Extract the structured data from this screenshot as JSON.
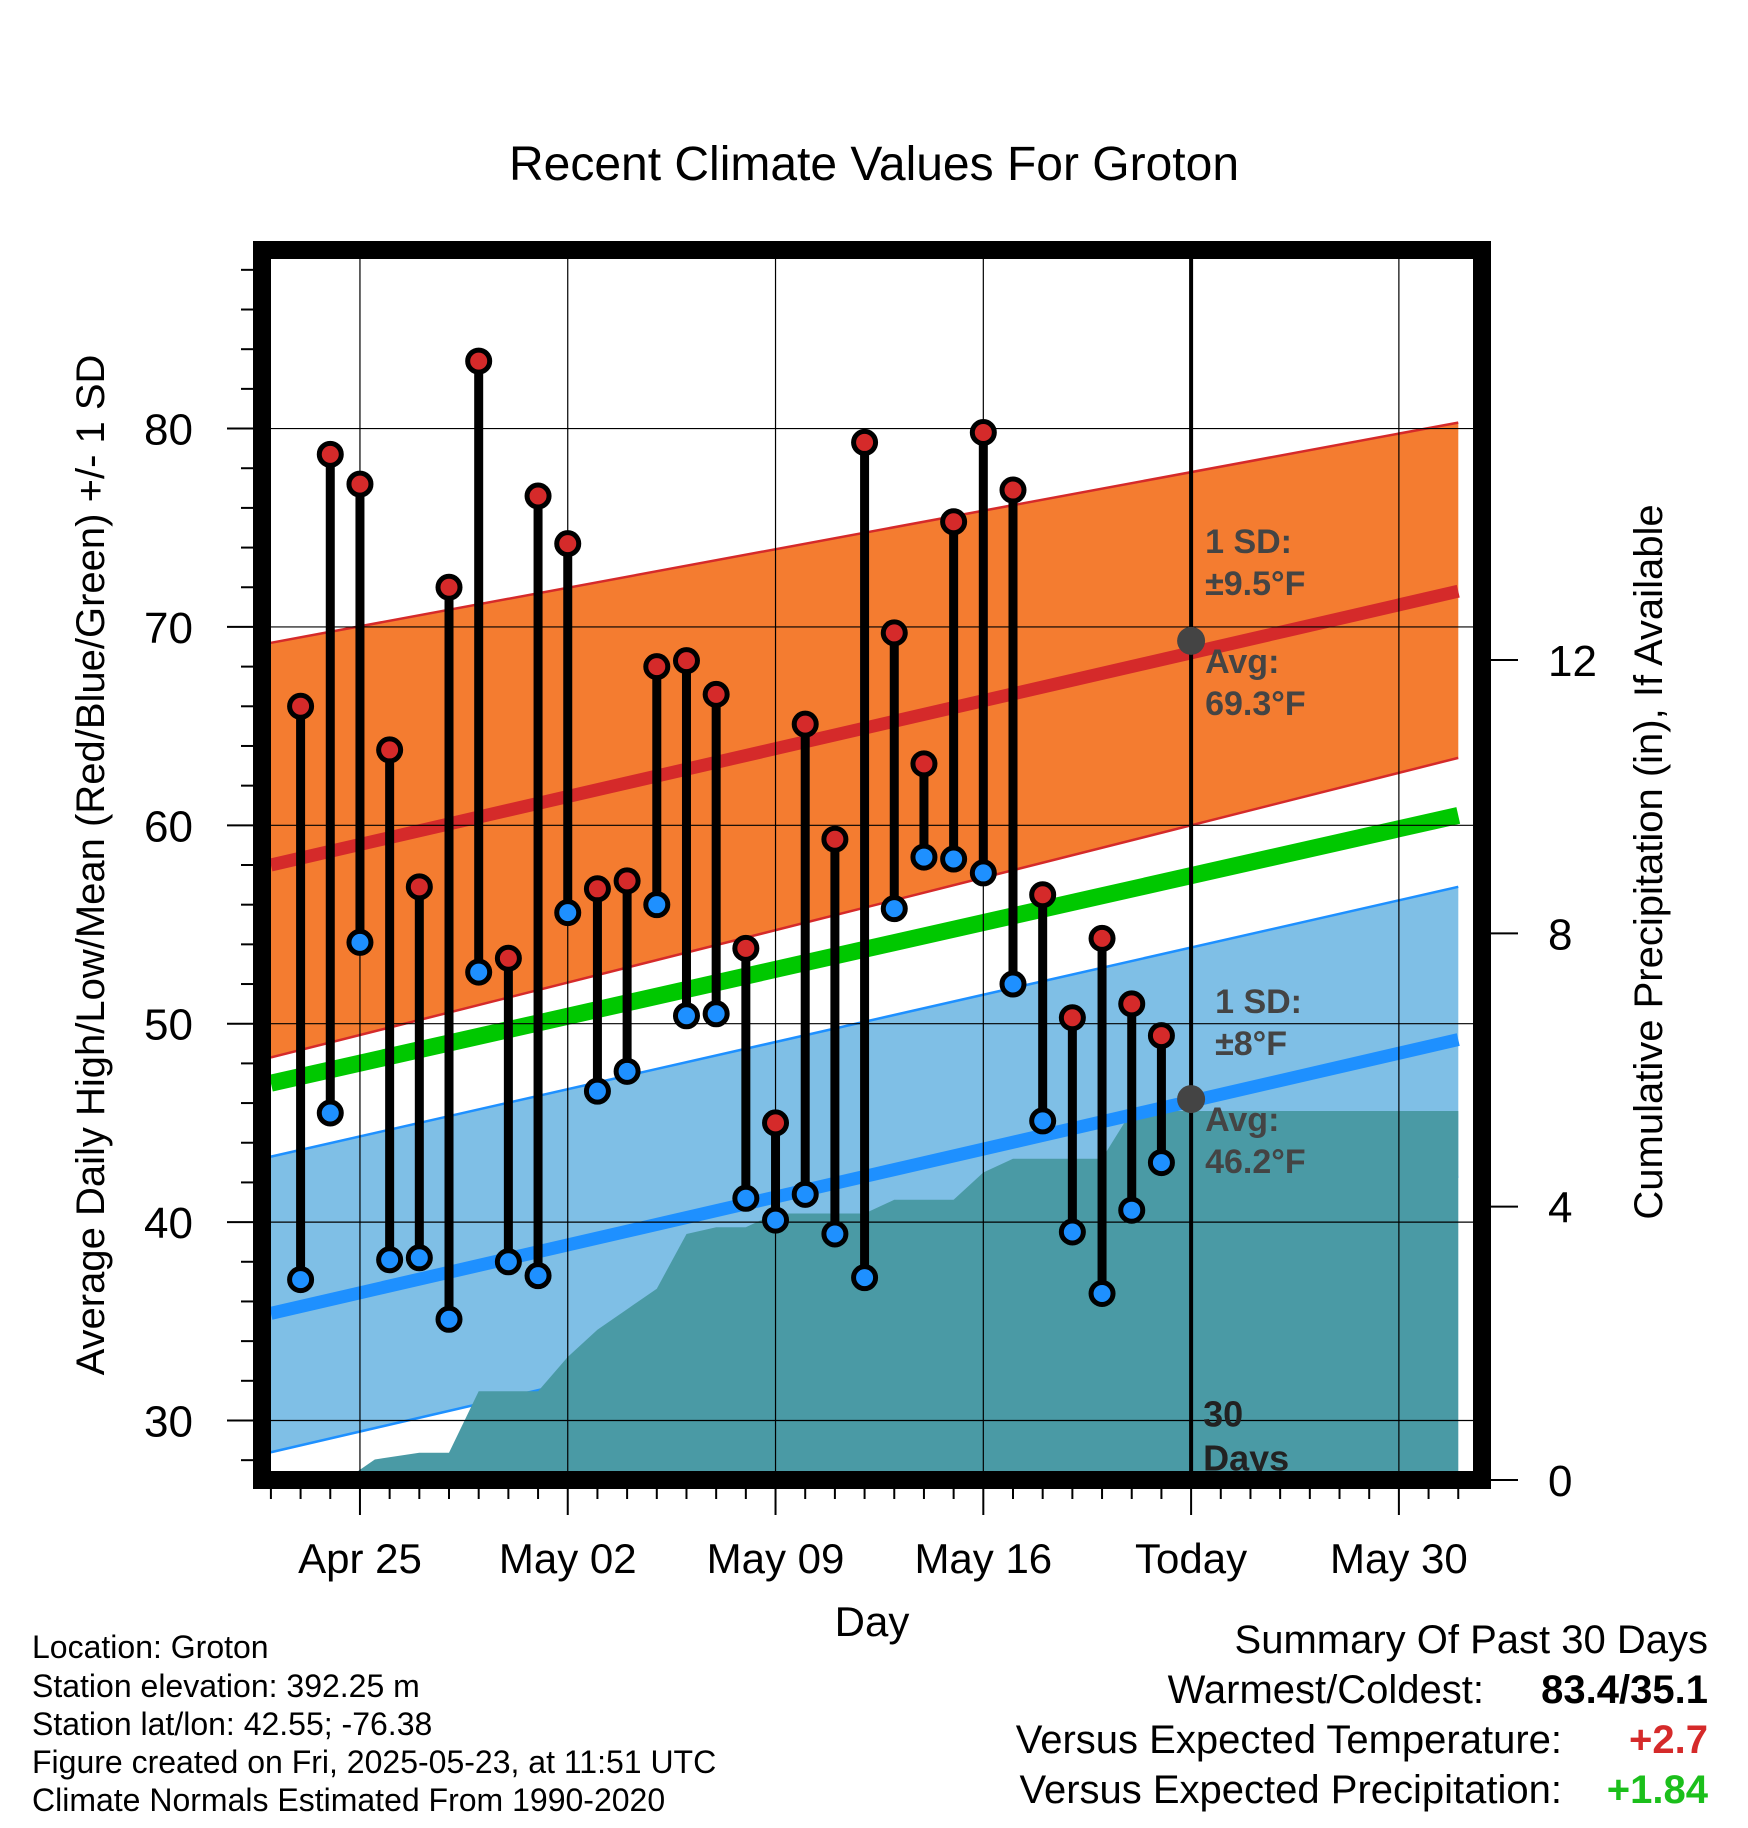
{
  "chart_data": {
    "type": "line",
    "title": "Recent Climate Values For Groton",
    "xlabel": "Day",
    "ylabel": "Average Daily High/Low/Mean (Red/Blue/Green) +/- 1 SD",
    "y2label": "Cumulative Precipitation (in), If Available",
    "ylim": [
      27,
      89
    ],
    "y2lim": [
      0,
      18
    ],
    "yticks": [
      30,
      40,
      50,
      60,
      70,
      80
    ],
    "y2ticks": [
      0,
      4,
      8,
      12
    ],
    "xlim": [
      -3.3,
      37.8
    ],
    "xticks": [
      {
        "day": 0,
        "label": "Apr 25"
      },
      {
        "day": 7,
        "label": "May 02"
      },
      {
        "day": 14,
        "label": "May 09"
      },
      {
        "day": 21,
        "label": "May 16"
      },
      {
        "day": 28,
        "label": "Today"
      },
      {
        "day": 35,
        "label": "May 30"
      }
    ],
    "grid": true,
    "daily": {
      "days": [
        -2,
        -1,
        0,
        1,
        2,
        3,
        4,
        5,
        6,
        7,
        8,
        9,
        10,
        11,
        12,
        13,
        14,
        15,
        16,
        17,
        18,
        19,
        20,
        21,
        22,
        23,
        24,
        25,
        26,
        27
      ],
      "high": [
        66.0,
        78.7,
        77.2,
        63.8,
        56.9,
        72.0,
        83.4,
        53.3,
        76.6,
        74.2,
        56.8,
        57.2,
        68.0,
        68.3,
        66.6,
        53.8,
        45.0,
        65.1,
        59.3,
        79.3,
        69.7,
        63.1,
        75.3,
        79.8,
        76.9,
        56.5,
        50.3,
        54.3,
        51.0,
        49.4
      ],
      "low": [
        37.1,
        45.5,
        54.1,
        38.1,
        38.2,
        35.1,
        52.6,
        38.0,
        37.3,
        55.6,
        46.6,
        47.6,
        56.0,
        50.4,
        50.5,
        41.2,
        40.1,
        41.4,
        39.4,
        37.2,
        55.8,
        58.4,
        58.3,
        57.6,
        52.0,
        45.1,
        39.5,
        36.4,
        40.6,
        43.0
      ]
    },
    "normals": {
      "days": [
        -3,
        37
      ],
      "high_avg": [
        58.0,
        71.8
      ],
      "high_upper": [
        69.2,
        80.3
      ],
      "high_lower": [
        48.3,
        63.4
      ],
      "mean_avg": [
        47.0,
        60.5
      ],
      "low_avg": [
        35.4,
        49.2
      ],
      "low_upper": [
        43.3,
        56.9
      ],
      "low_lower": [
        28.4,
        42.3
      ]
    },
    "precip_cumulative": {
      "days": [
        -3,
        -0.5,
        0.5,
        2,
        3,
        4,
        5,
        6,
        7,
        8,
        9,
        10,
        11,
        12,
        13,
        14,
        15,
        16,
        17,
        18,
        19,
        20,
        21,
        22,
        23,
        24,
        25,
        26,
        27,
        37
      ],
      "values": [
        0,
        0,
        0.3,
        0.4,
        0.4,
        1.3,
        1.3,
        1.3,
        1.8,
        2.2,
        2.5,
        2.8,
        3.6,
        3.7,
        3.7,
        3.9,
        3.9,
        3.9,
        3.9,
        4.1,
        4.1,
        4.1,
        4.5,
        4.7,
        4.7,
        4.7,
        4.7,
        5.4,
        5.4,
        5.4
      ]
    },
    "today_marker": {
      "label": "30 Days"
    },
    "annotations": {
      "high_sd": "1 SD:\n±9.5°F",
      "high_avg": "Avg:\n69.3°F",
      "low_sd": "1 SD:\n±8°F",
      "low_avg": "Avg:\n46.2°F",
      "high_avg_today": 69.3,
      "low_avg_today": 46.2
    },
    "colors": {
      "high_band": "#f47c30",
      "high_line": "#d52a2a",
      "low_band": "#7fbfe6",
      "low_line": "#1e90ff",
      "mean_line": "#00c800",
      "precip": "#4a9aa5",
      "high_dot": "#d52a2a",
      "low_dot": "#1e90ff"
    }
  },
  "footer": {
    "location": "Location: Groton",
    "elevation": "Station elevation: 392.25 m",
    "latlon": "Station lat/lon: 42.55; -76.38",
    "created": "Figure created on Fri, 2025-05-23, at 11:51 UTC",
    "normals": "Climate Normals Estimated From 1990-2020"
  },
  "summary": {
    "heading": "Summary Of Past 30 Days",
    "warm_cold_label": "Warmest/Coldest:",
    "warm_cold_value": "83.4/35.1",
    "temp_label": "Versus Expected Temperature:",
    "temp_value": "+2.7",
    "temp_color": "#d52a2a",
    "precip_label": "Versus Expected Precipitation:",
    "precip_value": "+1.84",
    "precip_color": "#1bbf1b"
  }
}
